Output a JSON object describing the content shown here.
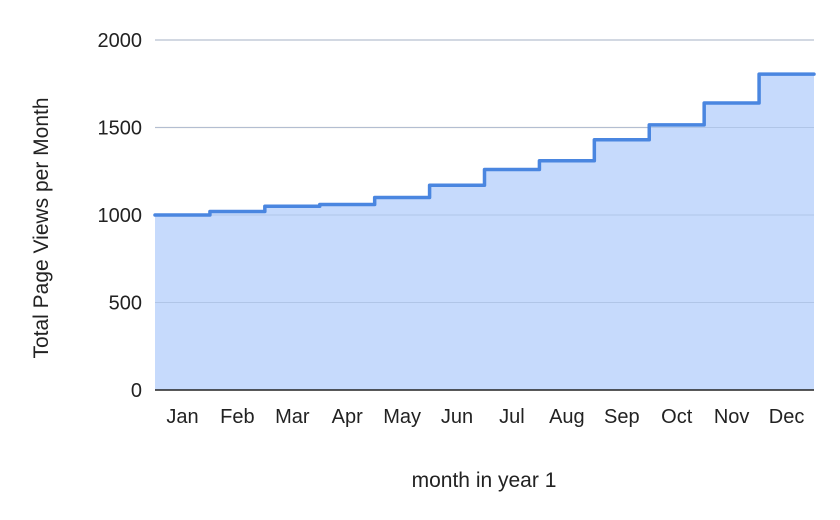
{
  "chart_data": {
    "type": "area",
    "title": "",
    "xlabel": "month in year 1",
    "ylabel": "Total Page Views per Month",
    "categories": [
      "Jan",
      "Feb",
      "Mar",
      "Apr",
      "May",
      "Jun",
      "Jul",
      "Aug",
      "Sep",
      "Oct",
      "Nov",
      "Dec"
    ],
    "series": [
      {
        "values": [
          1000,
          1020,
          1050,
          1060,
          1100,
          1170,
          1260,
          1310,
          1430,
          1515,
          1640,
          1805
        ]
      }
    ],
    "interpolation": "stepped",
    "ylim": [
      0,
      2000
    ],
    "yticks": [
      0,
      500,
      1000,
      1500,
      2000
    ],
    "grid": true,
    "legend": "none",
    "colors": {
      "line": "#4a86e0",
      "fill": "#c6dafc",
      "grid": "#cccccc",
      "axis": "#222222"
    }
  }
}
